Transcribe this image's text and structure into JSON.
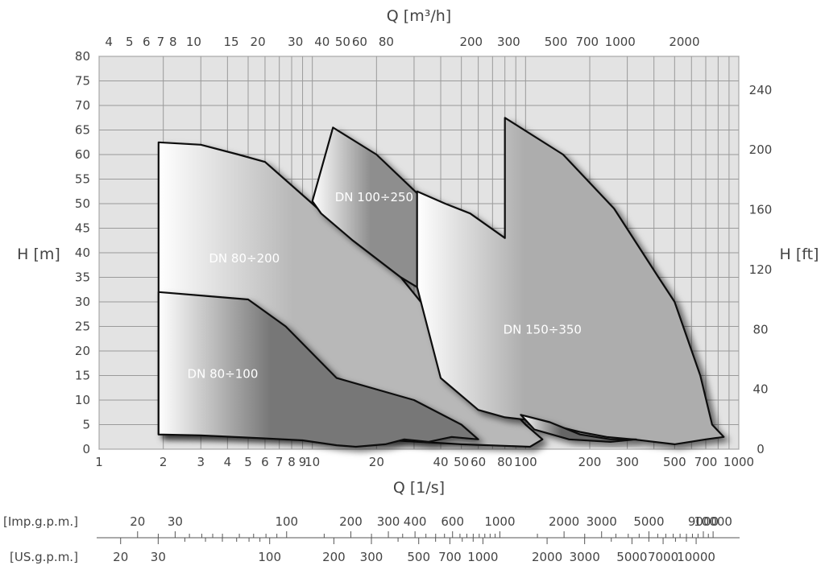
{
  "chart_data": {
    "type": "area",
    "title": "",
    "xlabel_bottom": "Q [1/s]",
    "xlabel_top": "Q [m³/h]",
    "ylabel_left": "H [m]",
    "ylabel_right": "H [ft]",
    "x_scale": "log",
    "xlim": [
      1,
      1000
    ],
    "ylim": [
      0,
      80
    ],
    "grid": true,
    "x_ticks_bottom": [
      {
        "v": 1,
        "label": "1"
      },
      {
        "v": 2,
        "label": "2"
      },
      {
        "v": 3,
        "label": "3"
      },
      {
        "v": 4,
        "label": "4"
      },
      {
        "v": 5,
        "label": "5"
      },
      {
        "v": 6,
        "label": "6"
      },
      {
        "v": 7,
        "label": "7"
      },
      {
        "v": 8,
        "label": "8"
      },
      {
        "v": 9,
        "label": "9"
      },
      {
        "v": 10,
        "label": "10"
      },
      {
        "v": 20,
        "label": "20"
      },
      {
        "v": 40,
        "label": "40"
      },
      {
        "v": 50,
        "label": "50"
      },
      {
        "v": 60,
        "label": "60"
      },
      {
        "v": 80,
        "label": "80"
      },
      {
        "v": 100,
        "label": "100"
      },
      {
        "v": 200,
        "label": "200"
      },
      {
        "v": 300,
        "label": "300"
      },
      {
        "v": 500,
        "label": "500"
      },
      {
        "v": 700,
        "label": "700"
      },
      {
        "v": 1000,
        "label": "1000"
      }
    ],
    "x_ticks_top": [
      {
        "v": 4,
        "label": "4"
      },
      {
        "v": 5,
        "label": "5"
      },
      {
        "v": 6,
        "label": "6"
      },
      {
        "v": 7,
        "label": "7"
      },
      {
        "v": 8,
        "label": "8"
      },
      {
        "v": 10,
        "label": "10"
      },
      {
        "v": 15,
        "label": "15"
      },
      {
        "v": 20,
        "label": "20"
      },
      {
        "v": 30,
        "label": "30"
      },
      {
        "v": 40,
        "label": "40"
      },
      {
        "v": 50,
        "label": "50"
      },
      {
        "v": 60,
        "label": "60"
      },
      {
        "v": 80,
        "label": "80"
      },
      {
        "v": 200,
        "label": "200"
      },
      {
        "v": 300,
        "label": "300"
      },
      {
        "v": 500,
        "label": "500"
      },
      {
        "v": 700,
        "label": "700"
      },
      {
        "v": 1000,
        "label": "1000"
      },
      {
        "v": 2000,
        "label": "2000"
      }
    ],
    "y_ticks_left": [
      0,
      5,
      10,
      15,
      20,
      25,
      30,
      35,
      40,
      45,
      50,
      55,
      60,
      65,
      70,
      75,
      80
    ],
    "y_ticks_right": [
      0,
      40,
      80,
      120,
      160,
      200,
      240
    ],
    "imp_gpm": {
      "label": "[Imp.g.p.m.]",
      "labeled": [
        20,
        30,
        100,
        200,
        300,
        400,
        600,
        1000,
        2000,
        3000,
        5000,
        9000,
        10000
      ],
      "minor": [
        25,
        35,
        40,
        45,
        50,
        60,
        70,
        80,
        90,
        150,
        250,
        350,
        450,
        500,
        550,
        650,
        700,
        750,
        800,
        850,
        900,
        950,
        1500,
        2500,
        3500,
        4000,
        4500,
        5500,
        6000,
        6500,
        7000,
        7500,
        8000,
        8500,
        9500
      ]
    },
    "us_gpm": {
      "label": "[US.g.p.m.]",
      "labeled": [
        20,
        30,
        100,
        200,
        300,
        500,
        700,
        1000,
        2000,
        3000,
        5000,
        7000,
        10000
      ],
      "minor": [
        40,
        50,
        60,
        70,
        80,
        90,
        400,
        600,
        800,
        900,
        4000,
        6000,
        8000,
        9000
      ]
    },
    "regions": [
      {
        "name": "DN 80÷200",
        "shade": "#b8b8b8",
        "label_q": 4.8,
        "label_h": 38,
        "points": [
          [
            1.9,
            62.5
          ],
          [
            3.0,
            62.0
          ],
          [
            4.5,
            60.0
          ],
          [
            6.0,
            58.5
          ],
          [
            10.0,
            50.0
          ],
          [
            15.5,
            42.5
          ],
          [
            26.0,
            35.0
          ],
          [
            40.0,
            25.0
          ],
          [
            60.0,
            15.0
          ],
          [
            100.0,
            5.0
          ],
          [
            120.0,
            2.0
          ],
          [
            105.0,
            0.5
          ],
          [
            50.0,
            1.0
          ],
          [
            20.0,
            2.0
          ],
          [
            9.0,
            2.5
          ],
          [
            4.0,
            3.0
          ],
          [
            1.9,
            3.0
          ]
        ]
      },
      {
        "name": "DN 100÷250",
        "shade": "#8e8e8e",
        "label_q": 19.5,
        "label_h": 50.5,
        "points": [
          [
            10.0,
            50.5
          ],
          [
            12.5,
            65.5
          ],
          [
            20.0,
            60.0
          ],
          [
            33.0,
            51.0
          ],
          [
            42.0,
            47.0
          ],
          [
            55.0,
            38.0
          ],
          [
            60.0,
            30.0
          ],
          [
            45.0,
            32.0
          ],
          [
            31.0,
            33.0
          ],
          [
            26.0,
            35.0
          ],
          [
            15.5,
            42.5
          ],
          [
            11.0,
            48.0
          ]
        ]
      },
      {
        "name": "DN 80÷100",
        "shade": "#777777",
        "label_q": 3.8,
        "label_h": 14.5,
        "points": [
          [
            1.9,
            32.0
          ],
          [
            5.0,
            30.5
          ],
          [
            7.5,
            25.0
          ],
          [
            13.0,
            14.5
          ],
          [
            30.0,
            10.0
          ],
          [
            50.0,
            5.0
          ],
          [
            60.0,
            2.0
          ],
          [
            45.0,
            2.5
          ],
          [
            35.0,
            1.5
          ],
          [
            27.0,
            2.0
          ],
          [
            22.0,
            1.0
          ],
          [
            16.0,
            0.5
          ],
          [
            13.0,
            0.8
          ],
          [
            9.0,
            1.8
          ],
          [
            6.0,
            2.2
          ],
          [
            3.0,
            2.8
          ],
          [
            1.9,
            3.0
          ]
        ]
      },
      {
        "name": "DN 150÷350",
        "shade": "#adadad",
        "label_q": 120,
        "label_h": 23.5,
        "points": [
          [
            31.0,
            52.5
          ],
          [
            42.0,
            50.0
          ],
          [
            55.0,
            48.0
          ],
          [
            80.0,
            43.0
          ],
          [
            80.0,
            67.5
          ],
          [
            150.0,
            60.0
          ],
          [
            260.0,
            49.0
          ],
          [
            420.0,
            35.0
          ],
          [
            500.0,
            30.0
          ],
          [
            660.0,
            15.0
          ],
          [
            750.0,
            5.0
          ],
          [
            850.0,
            2.5
          ],
          [
            700.0,
            2.0
          ],
          [
            500.0,
            1.0
          ],
          [
            320.0,
            2.0
          ],
          [
            240.0,
            2.5
          ],
          [
            180.0,
            3.5
          ],
          [
            130.0,
            5.0
          ],
          [
            100.0,
            6.0
          ],
          [
            80.0,
            6.5
          ],
          [
            60.0,
            8.0
          ],
          [
            40.0,
            14.5
          ],
          [
            31.0,
            33.0
          ]
        ]
      },
      {
        "name": "",
        "shade": "#666666",
        "label_q": 0,
        "label_h": 0,
        "points": [
          [
            95.0,
            7.0
          ],
          [
            130.0,
            5.5
          ],
          [
            180.0,
            3.0
          ],
          [
            250.0,
            2.0
          ],
          [
            330.0,
            2.0
          ],
          [
            250.0,
            1.5
          ],
          [
            160.0,
            2.0
          ],
          [
            110.0,
            4.0
          ]
        ]
      }
    ]
  }
}
